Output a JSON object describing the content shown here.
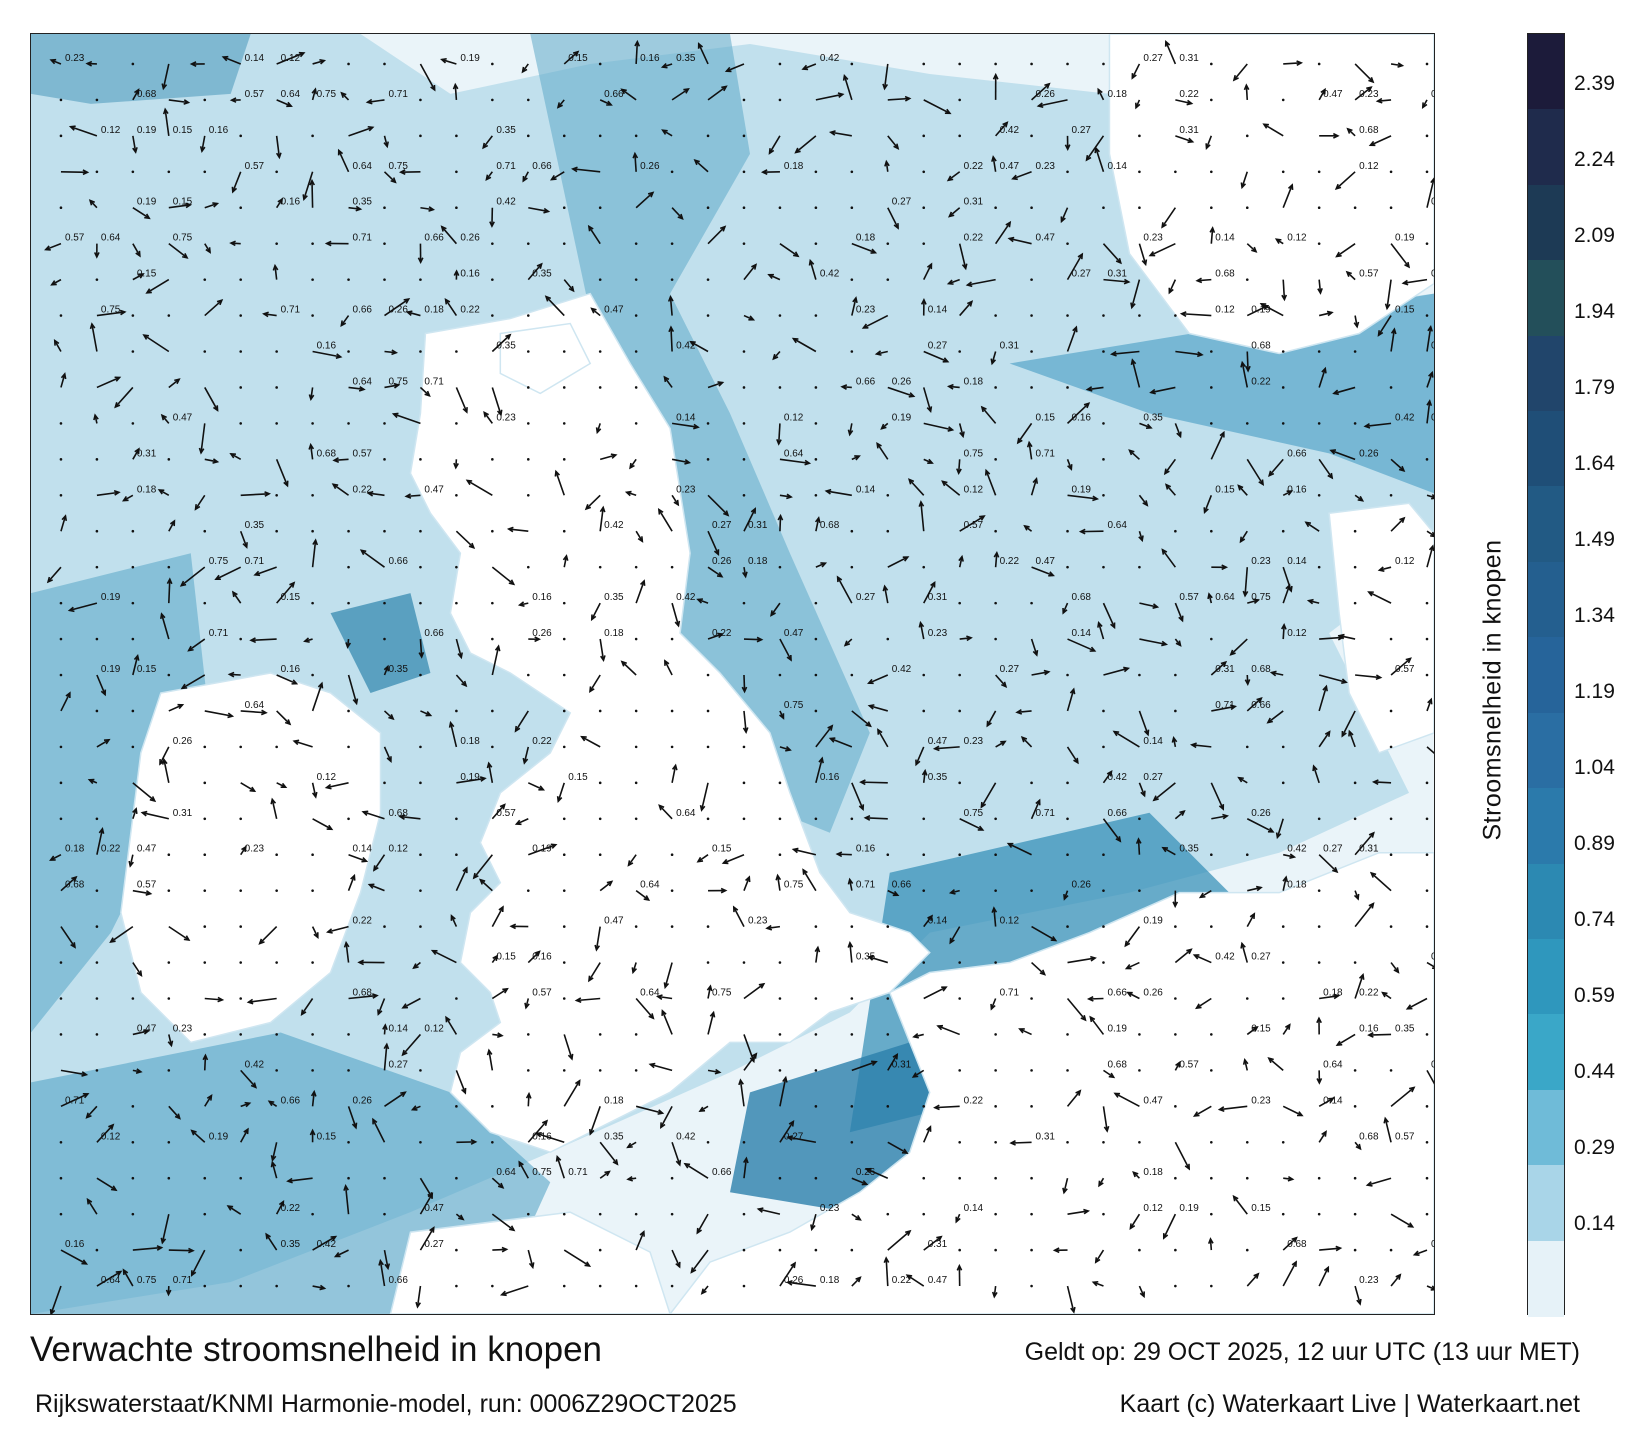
{
  "map": {
    "variable": "Stroomsnelheid in knopen",
    "region_labels_visible": false,
    "land_color": "#ffffff",
    "arrow_color": "#111111",
    "sample_values": [
      "0.23",
      "0.14",
      "0.12",
      "0.19",
      "0.15",
      "0.16",
      "0.35",
      "0.42",
      "0.27",
      "0.31",
      "0.68",
      "0.57",
      "0.64",
      "0.75",
      "0.71",
      "0.66",
      "0.26",
      "0.18",
      "0.22",
      "0.47"
    ]
  },
  "colorbar": {
    "title": "Stroomsnelheid in knopen",
    "ticks": [
      "2.39",
      "2.24",
      "2.09",
      "1.94",
      "1.79",
      "1.64",
      "1.49",
      "1.34",
      "1.19",
      "1.04",
      "0.89",
      "0.74",
      "0.59",
      "0.44",
      "0.29",
      "0.14"
    ],
    "colors": [
      "#1c1b3a",
      "#1f2b4c",
      "#1d3a55",
      "#234f5a",
      "#21456b",
      "#1f4e77",
      "#225a84",
      "#245f8f",
      "#26649a",
      "#2a6ea3",
      "#2b7aab",
      "#2c89b2",
      "#2f97bd",
      "#3aa7c8",
      "#6fbbd8",
      "#a9d5e8",
      "#e6f2f8"
    ]
  },
  "footer": {
    "title": "Verwachte stroomsnelheid in knopen",
    "valid": "Geldt op: 29 OCT 2025, 12 uur UTC (13 uur MET)",
    "source": "Rijkswaterstaat/KNMI Harmonie-model, run: 0006Z29OCT2025",
    "credit": "Kaart (c) Waterkaart Live | Waterkaart.net"
  }
}
